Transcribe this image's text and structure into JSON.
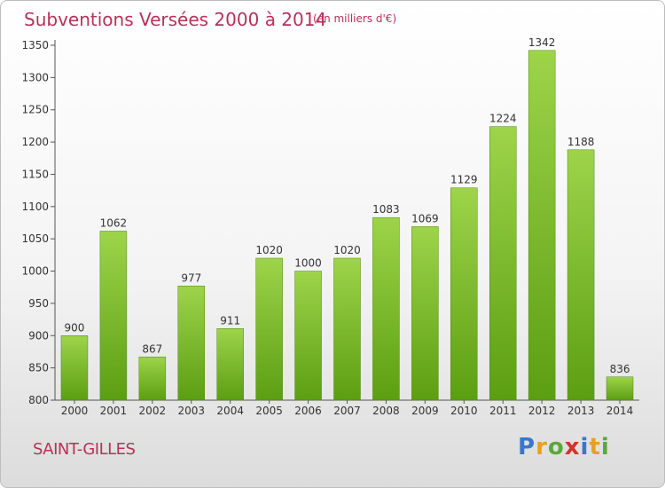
{
  "chart_data": {
    "type": "bar",
    "title": "Subventions Versées 2000 à 2014",
    "subtitle": "(en milliers d'€)",
    "categories": [
      "2000",
      "2001",
      "2002",
      "2003",
      "2004",
      "2005",
      "2006",
      "2007",
      "2008",
      "2009",
      "2010",
      "2011",
      "2012",
      "2013",
      "2014"
    ],
    "values": [
      900,
      1062,
      867,
      977,
      911,
      1020,
      1000,
      1020,
      1083,
      1069,
      1129,
      1224,
      1342,
      1188,
      836
    ],
    "ylim": [
      800,
      1350
    ],
    "yticks": [
      800,
      850,
      900,
      950,
      1000,
      1050,
      1100,
      1150,
      1200,
      1250,
      1300,
      1350
    ],
    "grid": false,
    "bar_color_top": "#9dd44a",
    "bar_color_bottom": "#5c9e12"
  },
  "location": "SAINT-GILLES",
  "logo": {
    "letters": [
      "P",
      "r",
      "o",
      "x",
      "i",
      "t",
      "i"
    ],
    "colors": [
      "#3a78c8",
      "#e8a11c",
      "#5aa83a",
      "#d4312b",
      "#3a78c8",
      "#e8a11c",
      "#5aa83a"
    ]
  }
}
